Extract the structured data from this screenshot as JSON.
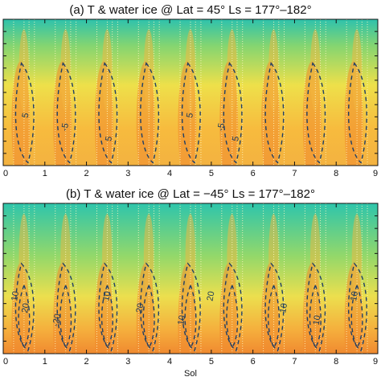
{
  "chart_data": [
    {
      "type": "heatmap",
      "panel": "a",
      "title": "(a) T & water ice @ Lat = 45° Ls = 177°–182°",
      "x_ticks": [
        "0",
        "1",
        "2",
        "3",
        "4",
        "5",
        "6",
        "7",
        "8",
        "9"
      ],
      "xlim": [
        0,
        9
      ],
      "xlabel": "",
      "colormap": [
        "#2fc4a9",
        "#8fd86a",
        "#f2e34a",
        "#f6a23a",
        "#ef6a2a"
      ],
      "contour_levels": [
        "5"
      ],
      "contour_labels": [
        {
          "text": "5",
          "sol": 0.6
        },
        {
          "text": "-5",
          "sol": 1.55
        },
        {
          "text": "5",
          "sol": 2.6
        },
        {
          "text": "5",
          "sol": 4.55
        },
        {
          "text": "-5",
          "sol": 5.3
        },
        {
          "text": "5",
          "sol": 5.65
        }
      ]
    },
    {
      "type": "heatmap",
      "panel": "b",
      "title": "(b) T & water ice @ Lat = −45° Ls = 177°–182°",
      "x_ticks": [
        "0",
        "1",
        "2",
        "3",
        "4",
        "5",
        "6",
        "7",
        "8",
        "9"
      ],
      "xlim": [
        0,
        9
      ],
      "xlabel": "Sol",
      "colormap": [
        "#2fc4a9",
        "#8fd86a",
        "#f2e34a",
        "#f6a23a",
        "#ef6a2a"
      ],
      "contour_levels": [
        "10",
        "20"
      ],
      "contour_labels": [
        {
          "text": "10",
          "sol": 0.35
        },
        {
          "text": "20",
          "sol": 0.6
        },
        {
          "text": "-20",
          "sol": 1.35
        },
        {
          "text": "10",
          "sol": 2.55
        },
        {
          "text": "20",
          "sol": 3.35
        },
        {
          "text": "10",
          "sol": 4.35
        },
        {
          "text": "20",
          "sol": 5.05
        },
        {
          "text": "10",
          "sol": 6.8
        },
        {
          "text": "10",
          "sol": 7.6
        },
        {
          "text": "10",
          "sol": 8.5
        }
      ]
    }
  ]
}
